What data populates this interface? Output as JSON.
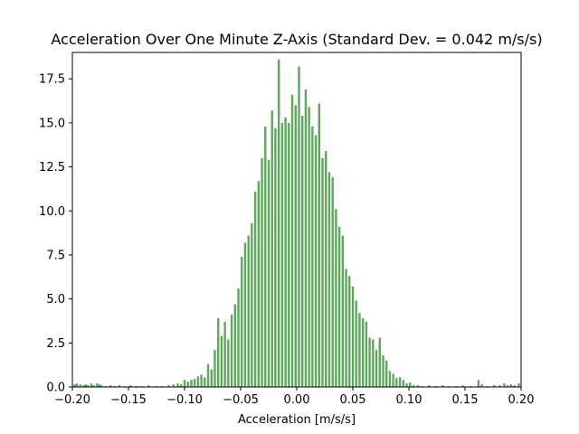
{
  "chart_data": {
    "type": "bar",
    "title": "Acceleration Over One Minute Z-Axis (Standard Dev. = 0.042 m/s/s)",
    "xlabel": "Acceleration [m/s/s]",
    "ylabel": "",
    "xlim": [
      -0.2,
      0.2
    ],
    "ylim": [
      0,
      19.0
    ],
    "xticks": [
      "−0.20",
      "−0.15",
      "−0.10",
      "−0.05",
      "0.00",
      "0.05",
      "0.10",
      "0.15",
      "0.20"
    ],
    "xtick_values": [
      -0.2,
      -0.15,
      -0.1,
      -0.05,
      0.0,
      0.05,
      0.1,
      0.15,
      0.2
    ],
    "yticks": [
      "0.0",
      "2.5",
      "5.0",
      "7.5",
      "10.0",
      "12.5",
      "15.0",
      "17.5"
    ],
    "ytick_values": [
      0,
      2.5,
      5.0,
      7.5,
      10.0,
      12.5,
      15.0,
      17.5
    ],
    "bar_color": "#5aaa5a",
    "grid": false,
    "bars": [
      {
        "x": -0.198,
        "y": 0.15
      },
      {
        "x": -0.196,
        "y": 0.2
      },
      {
        "x": -0.193,
        "y": 0.15
      },
      {
        "x": -0.19,
        "y": 0.1
      },
      {
        "x": -0.188,
        "y": 0.15
      },
      {
        "x": -0.186,
        "y": 0.1
      },
      {
        "x": -0.183,
        "y": 0.2
      },
      {
        "x": -0.181,
        "y": 0.1
      },
      {
        "x": -0.178,
        "y": 0.2
      },
      {
        "x": -0.176,
        "y": 0.15
      },
      {
        "x": -0.174,
        "y": 0.1
      },
      {
        "x": -0.17,
        "y": 0.05
      },
      {
        "x": -0.166,
        "y": 0.1
      },
      {
        "x": -0.162,
        "y": 0.05
      },
      {
        "x": -0.158,
        "y": 0.1
      },
      {
        "x": -0.153,
        "y": 0.05
      },
      {
        "x": -0.148,
        "y": 0.1
      },
      {
        "x": -0.143,
        "y": 0.05
      },
      {
        "x": -0.138,
        "y": 0.05
      },
      {
        "x": -0.132,
        "y": 0.1
      },
      {
        "x": -0.125,
        "y": 0.05
      },
      {
        "x": -0.12,
        "y": 0.05
      },
      {
        "x": -0.114,
        "y": 0.1
      },
      {
        "x": -0.11,
        "y": 0.15
      },
      {
        "x": -0.106,
        "y": 0.2
      },
      {
        "x": -0.103,
        "y": 0.15
      },
      {
        "x": -0.1,
        "y": 0.4
      },
      {
        "x": -0.097,
        "y": 0.3
      },
      {
        "x": -0.094,
        "y": 0.4
      },
      {
        "x": -0.091,
        "y": 0.45
      },
      {
        "x": -0.088,
        "y": 0.6
      },
      {
        "x": -0.085,
        "y": 0.7
      },
      {
        "x": -0.082,
        "y": 0.55
      },
      {
        "x": -0.079,
        "y": 1.3
      },
      {
        "x": -0.076,
        "y": 1.0
      },
      {
        "x": -0.073,
        "y": 2.1
      },
      {
        "x": -0.07,
        "y": 3.9
      },
      {
        "x": -0.067,
        "y": 2.9
      },
      {
        "x": -0.064,
        "y": 3.7
      },
      {
        "x": -0.061,
        "y": 2.7
      },
      {
        "x": -0.058,
        "y": 4.1
      },
      {
        "x": -0.055,
        "y": 4.7
      },
      {
        "x": -0.052,
        "y": 5.6
      },
      {
        "x": -0.049,
        "y": 7.4
      },
      {
        "x": -0.046,
        "y": 8.2
      },
      {
        "x": -0.043,
        "y": 8.6
      },
      {
        "x": -0.04,
        "y": 9.3
      },
      {
        "x": -0.037,
        "y": 11.1
      },
      {
        "x": -0.034,
        "y": 11.7
      },
      {
        "x": -0.031,
        "y": 13.0
      },
      {
        "x": -0.028,
        "y": 14.8
      },
      {
        "x": -0.025,
        "y": 12.9
      },
      {
        "x": -0.022,
        "y": 15.7
      },
      {
        "x": -0.019,
        "y": 14.7
      },
      {
        "x": -0.016,
        "y": 18.6
      },
      {
        "x": -0.013,
        "y": 15.0
      },
      {
        "x": -0.01,
        "y": 15.3
      },
      {
        "x": -0.007,
        "y": 15.0
      },
      {
        "x": -0.004,
        "y": 16.6
      },
      {
        "x": -0.001,
        "y": 16.0
      },
      {
        "x": 0.002,
        "y": 18.2
      },
      {
        "x": 0.005,
        "y": 15.4
      },
      {
        "x": 0.008,
        "y": 16.9
      },
      {
        "x": 0.011,
        "y": 15.9
      },
      {
        "x": 0.014,
        "y": 14.8
      },
      {
        "x": 0.017,
        "y": 14.3
      },
      {
        "x": 0.02,
        "y": 16.1
      },
      {
        "x": 0.023,
        "y": 13.0
      },
      {
        "x": 0.026,
        "y": 13.4
      },
      {
        "x": 0.029,
        "y": 12.2
      },
      {
        "x": 0.032,
        "y": 11.9
      },
      {
        "x": 0.035,
        "y": 10.1
      },
      {
        "x": 0.038,
        "y": 9.1
      },
      {
        "x": 0.041,
        "y": 8.6
      },
      {
        "x": 0.044,
        "y": 6.7
      },
      {
        "x": 0.047,
        "y": 6.3
      },
      {
        "x": 0.05,
        "y": 5.7
      },
      {
        "x": 0.053,
        "y": 4.9
      },
      {
        "x": 0.056,
        "y": 4.2
      },
      {
        "x": 0.059,
        "y": 3.9
      },
      {
        "x": 0.062,
        "y": 3.7
      },
      {
        "x": 0.065,
        "y": 2.8
      },
      {
        "x": 0.068,
        "y": 2.7
      },
      {
        "x": 0.071,
        "y": 2.1
      },
      {
        "x": 0.074,
        "y": 2.8
      },
      {
        "x": 0.077,
        "y": 1.8
      },
      {
        "x": 0.08,
        "y": 1.5
      },
      {
        "x": 0.083,
        "y": 0.9
      },
      {
        "x": 0.086,
        "y": 0.75
      },
      {
        "x": 0.089,
        "y": 0.5
      },
      {
        "x": 0.092,
        "y": 0.55
      },
      {
        "x": 0.095,
        "y": 0.4
      },
      {
        "x": 0.098,
        "y": 0.2
      },
      {
        "x": 0.101,
        "y": 0.25
      },
      {
        "x": 0.104,
        "y": 0.1
      },
      {
        "x": 0.108,
        "y": 0.1
      },
      {
        "x": 0.112,
        "y": 0.05
      },
      {
        "x": 0.118,
        "y": 0.1
      },
      {
        "x": 0.124,
        "y": 0.05
      },
      {
        "x": 0.13,
        "y": 0.1
      },
      {
        "x": 0.136,
        "y": 0.05
      },
      {
        "x": 0.142,
        "y": 0.05
      },
      {
        "x": 0.148,
        "y": 0.1
      },
      {
        "x": 0.155,
        "y": 0.05
      },
      {
        "x": 0.162,
        "y": 0.4
      },
      {
        "x": 0.165,
        "y": 0.15
      },
      {
        "x": 0.17,
        "y": 0.05
      },
      {
        "x": 0.176,
        "y": 0.1
      },
      {
        "x": 0.181,
        "y": 0.1
      },
      {
        "x": 0.185,
        "y": 0.2
      },
      {
        "x": 0.188,
        "y": 0.1
      },
      {
        "x": 0.191,
        "y": 0.15
      },
      {
        "x": 0.194,
        "y": 0.1
      },
      {
        "x": 0.198,
        "y": 0.2
      }
    ]
  }
}
